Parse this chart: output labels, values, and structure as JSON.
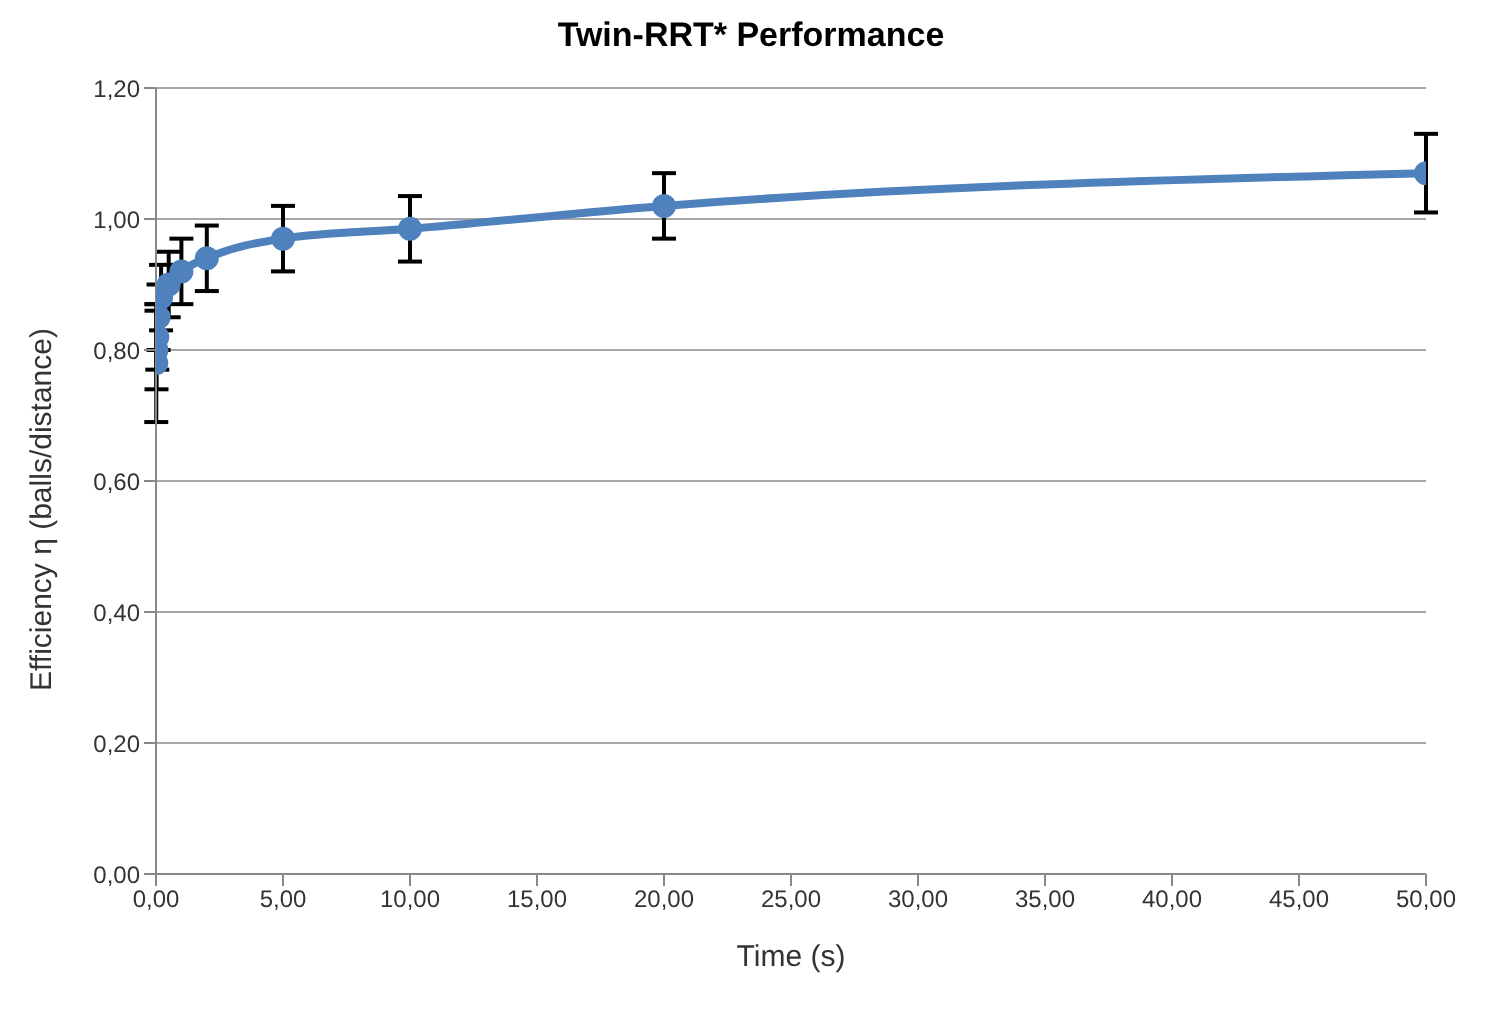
{
  "chart_data": {
    "type": "line",
    "title": "Twin-RRT*  Performance",
    "xlabel": "Time (s)",
    "ylabel": "Efficiency η (balls/distance)",
    "x": [
      0.01,
      0.02,
      0.05,
      0.1,
      0.2,
      0.5,
      1,
      2,
      5,
      10,
      20,
      50
    ],
    "series": [
      {
        "color": "#4f81bd",
        "values": [
          0.78,
          0.8,
          0.82,
          0.85,
          0.88,
          0.9,
          0.92,
          0.94,
          0.97,
          0.985,
          1.02,
          1.07
        ],
        "errors": [
          0.09,
          0.06,
          0.05,
          0.05,
          0.05,
          0.05,
          0.05,
          0.05,
          0.05,
          0.05,
          0.05,
          0.06
        ]
      }
    ],
    "xlim": [
      0,
      50
    ],
    "xticks": [
      {
        "value": 0,
        "label": "0,00"
      },
      {
        "value": 5,
        "label": "5,00"
      },
      {
        "value": 10,
        "label": "10,00"
      },
      {
        "value": 15,
        "label": "15,00"
      },
      {
        "value": 20,
        "label": "20,00"
      },
      {
        "value": 25,
        "label": "25,00"
      },
      {
        "value": 30,
        "label": "30,00"
      },
      {
        "value": 35,
        "label": "35,00"
      },
      {
        "value": 40,
        "label": "40,00"
      },
      {
        "value": 45,
        "label": "45,00"
      },
      {
        "value": 50,
        "label": "50,00"
      }
    ],
    "ylim": [
      0,
      1.2
    ],
    "yticks": [
      {
        "value": 0,
        "label": "0,00"
      },
      {
        "value": 0.2,
        "label": "0,20"
      },
      {
        "value": 0.4,
        "label": "0,40"
      },
      {
        "value": 0.6,
        "label": "0,60"
      },
      {
        "value": 0.8,
        "label": "0,80"
      },
      {
        "value": 1,
        "label": "1,00"
      },
      {
        "value": 1.2,
        "label": "1,20"
      }
    ],
    "grid": "y",
    "marker": "circle",
    "line_style": "solid",
    "legend": false
  }
}
